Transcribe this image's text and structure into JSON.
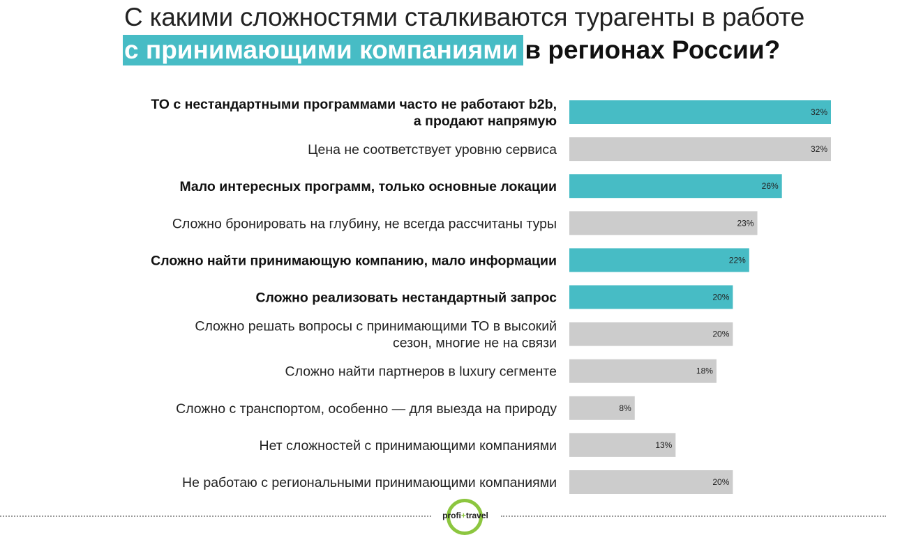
{
  "title": {
    "line1": "С какими сложностями сталкиваются турагенты в работе",
    "highlight": "с принимающими компаниями",
    "rest": " в регионах России?"
  },
  "colors": {
    "highlight": "#47bcc5",
    "bar_highlight": "#47bcc5",
    "bar_default": "#cccccc"
  },
  "chart_data": {
    "type": "bar",
    "orientation": "horizontal",
    "unit": "%",
    "xlim": [
      0,
      32
    ],
    "categories": [
      [
        "ТО с нестандартными программами часто не работают b2b,",
        "а продают напрямую"
      ],
      [
        "Цена не соответствует уровню сервиса"
      ],
      [
        "Мало интересных программ, только основные локации"
      ],
      [
        "Сложно бронировать на глубину, не всегда рассчитаны туры"
      ],
      [
        "Сложно найти принимающую компанию, мало информации"
      ],
      [
        "Сложно реализовать нестандартный запрос"
      ],
      [
        "Сложно решать вопросы с принимающими ТО в высокий",
        "сезон, многие не на связи"
      ],
      [
        "Сложно найти партнеров в luxury сегменте"
      ],
      [
        "Сложно с транспортом, особенно — для выезда на природу"
      ],
      [
        "Нет сложностей с принимающими компаниями"
      ],
      [
        "Не работаю с региональными принимающими компаниями"
      ]
    ],
    "values": [
      32,
      32,
      26,
      23,
      22,
      20,
      20,
      18,
      8,
      13,
      20
    ],
    "highlighted": [
      true,
      false,
      true,
      false,
      true,
      true,
      false,
      false,
      false,
      false,
      false
    ],
    "legend": "none",
    "grid": false
  },
  "footer": {
    "logo_left": "profi",
    "logo_plus": "+",
    "logo_right": "travel"
  }
}
